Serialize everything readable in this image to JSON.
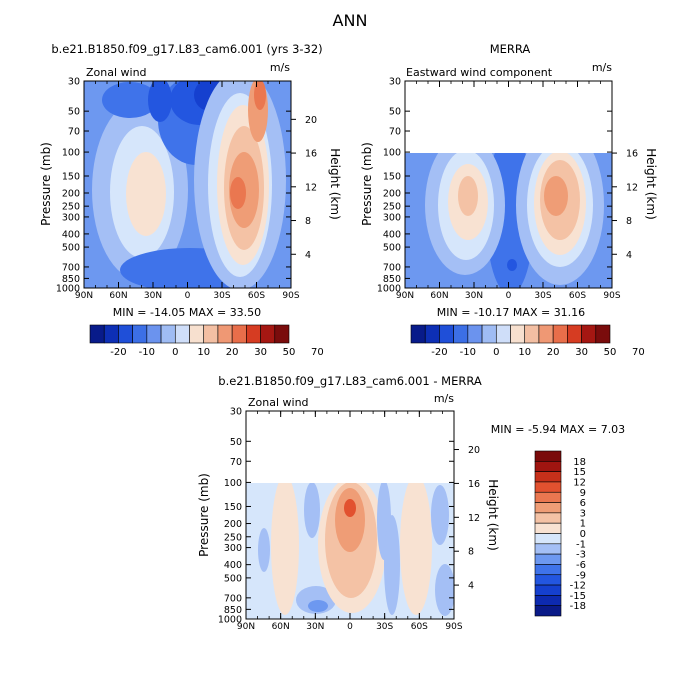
{
  "page_title": "ANN",
  "colors": {
    "scale_a": [
      "#081b8a",
      "#0d2fb5",
      "#1f4fd8",
      "#3c6fe6",
      "#6b93ee",
      "#9fbcf4",
      "#cfdef9",
      "#f7e0cf",
      "#f3bfa3",
      "#ef9874",
      "#e86e4a",
      "#d63c22",
      "#a51712",
      "#7a0c0c"
    ],
    "scale_b": [
      "#0a1a88",
      "#0d2ab0",
      "#1540cf",
      "#2356e0",
      "#3f73ea",
      "#6d98f0",
      "#a4bff5",
      "#d6e6fb",
      "#f8e2d2",
      "#f4c2a5",
      "#ef9d76",
      "#ea7750",
      "#e2512f",
      "#c7301a",
      "#a01510",
      "#7a0a0a"
    ]
  },
  "chart_data": [
    {
      "type": "heatmap",
      "name": "model",
      "title": "b.e21.B1850.f09_g17.L83_cam6.001 (yrs 3-32)",
      "left_label": "Zonal wind",
      "right_label": "m/s",
      "xlabel": "",
      "ylabel": "Pressure (mb)",
      "y2label": "Height (km)",
      "x_ticks": [
        "90N",
        "60N",
        "30N",
        "0",
        "30S",
        "60S",
        "90S"
      ],
      "y_ticks": [
        "30",
        "50",
        "70",
        "100",
        "150",
        "200",
        "250",
        "300",
        "400",
        "500",
        "700",
        "850",
        "1000"
      ],
      "y2_ticks": [
        "20",
        "16",
        "12",
        "8",
        "4"
      ],
      "plim_mb": [
        30,
        1000
      ],
      "stats": "MIN = -14.05   MAX = 33.50",
      "min": -14.05,
      "max": 33.5
    },
    {
      "type": "heatmap",
      "name": "merra",
      "title": "MERRA",
      "left_label": "Eastward wind component",
      "right_label": "m/s",
      "xlabel": "",
      "ylabel": "Pressure (mb)",
      "y2label": "Height (km)",
      "x_ticks": [
        "90N",
        "60N",
        "30N",
        "0",
        "30S",
        "60S",
        "90S"
      ],
      "y_ticks": [
        "30",
        "50",
        "70",
        "100",
        "150",
        "200",
        "250",
        "300",
        "400",
        "500",
        "700",
        "850",
        "1000"
      ],
      "y2_ticks": [
        "16",
        "12",
        "8",
        "4"
      ],
      "plim_mb": [
        30,
        1000
      ],
      "data_top_mb": 100,
      "stats": "MIN = -10.17   MAX = 31.16",
      "min": -10.17,
      "max": 31.16
    },
    {
      "type": "heatmap",
      "name": "difference",
      "title": "b.e21.B1850.f09_g17.L83_cam6.001 - MERRA",
      "left_label": "Zonal wind",
      "right_label": "m/s",
      "xlabel": "",
      "ylabel": "Pressure (mb)",
      "y2label": "Height (km)",
      "x_ticks": [
        "90N",
        "60N",
        "30N",
        "0",
        "30S",
        "60S",
        "90S"
      ],
      "y_ticks": [
        "30",
        "50",
        "70",
        "100",
        "150",
        "200",
        "250",
        "300",
        "400",
        "500",
        "700",
        "850",
        "1000"
      ],
      "y2_ticks": [
        "20",
        "16",
        "12",
        "8",
        "4"
      ],
      "plim_mb": [
        30,
        1000
      ],
      "data_top_mb": 100,
      "stats": "MIN =   -5.94  MAX =    7.03",
      "min": -5.94,
      "max": 7.03
    }
  ],
  "colorbar_a": {
    "labels": [
      "-20",
      "-10",
      "0",
      "10",
      "20",
      "30",
      "50",
      "70"
    ]
  },
  "colorbar_b": {
    "labels": [
      "18",
      "15",
      "12",
      "9",
      "6",
      "3",
      "1",
      "0",
      "-1",
      "-3",
      "-6",
      "-9",
      "-12",
      "-15",
      "-18"
    ]
  }
}
